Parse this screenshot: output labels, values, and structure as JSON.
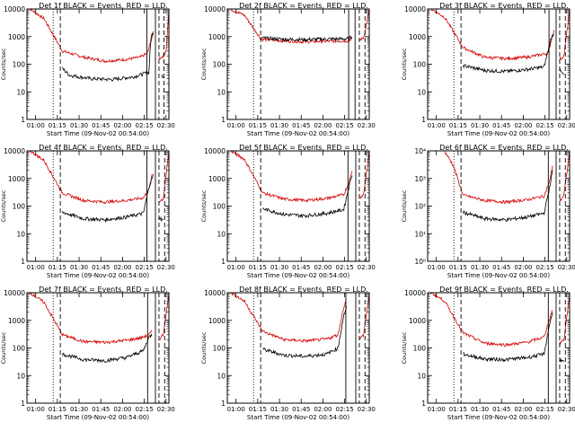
{
  "chart_data": {
    "type": "line",
    "common": {
      "xlabel": "Start Time (09-Nov-02 00:54:00)",
      "ylabel": "Counts/sec",
      "xlim": [
        "00:54",
        "02:32"
      ],
      "x_ticks": [
        "01:00",
        "01:15",
        "01:30",
        "01:45",
        "02:00",
        "02:15",
        "02:30"
      ],
      "y_scale": "log",
      "ylim": [
        1,
        10000
      ],
      "series": [
        {
          "label": "BLACK = Events",
          "color": "#000000"
        },
        {
          "label": "RED = LLD",
          "color": "#d40000"
        }
      ],
      "grid": false
    },
    "panels": [
      {
        "title": "Det 1f BLACK = Events, RED = LLD.",
        "y_tick_labels": [
          "1",
          "10",
          "100",
          "1000",
          "10000"
        ],
        "red": [
          [
            0.0,
            12000
          ],
          [
            0.12,
            4500
          ],
          [
            0.25,
            300
          ],
          [
            0.4,
            180
          ],
          [
            0.55,
            130
          ],
          [
            0.7,
            150
          ],
          [
            0.8,
            180
          ],
          [
            0.85,
            260
          ],
          [
            0.88,
            900
          ],
          [
            0.89,
            1500
          ]
        ],
        "black": [
          [
            0.25,
            70
          ],
          [
            0.3,
            40
          ],
          [
            0.45,
            30
          ],
          [
            0.6,
            28
          ],
          [
            0.75,
            35
          ],
          [
            0.82,
            45
          ],
          [
            0.86,
            50
          ],
          [
            0.87,
            650
          ],
          [
            0.88,
            1200
          ],
          [
            0.89,
            1300
          ]
        ],
        "red_post": [
          [
            0.93,
            160
          ],
          [
            0.96,
            200
          ],
          [
            0.98,
            300
          ],
          [
            1.0,
            9000
          ]
        ],
        "black_post": [
          [
            0.95,
            40
          ],
          [
            0.965,
            35
          ]
        ],
        "solid": [
          0.845,
          0.905
        ],
        "dashed": [
          0.235,
          0.93,
          0.965
        ],
        "dotted": [
          0.185
        ]
      },
      {
        "title": "Det 2f BLACK = Events, RED = LLD.",
        "y_tick_labels": [
          "1",
          "10",
          "100",
          "1000",
          "10000"
        ],
        "red": [
          [
            0.0,
            11000
          ],
          [
            0.12,
            6000
          ],
          [
            0.24,
            800
          ],
          [
            0.4,
            700
          ],
          [
            0.55,
            650
          ],
          [
            0.7,
            680
          ],
          [
            0.85,
            700
          ],
          [
            0.88,
            900
          ]
        ],
        "black": [
          [
            0.24,
            900
          ],
          [
            0.4,
            800
          ],
          [
            0.55,
            780
          ],
          [
            0.7,
            820
          ],
          [
            0.85,
            830
          ],
          [
            0.88,
            1000
          ]
        ],
        "red_post": [
          [
            0.93,
            750
          ],
          [
            0.96,
            900
          ],
          [
            1.0,
            9000
          ]
        ],
        "black_post": [],
        "solid": [
          0.855,
          0.9
        ],
        "dashed": [
          0.235,
          0.93,
          0.97
        ],
        "dotted": [
          0.185
        ]
      },
      {
        "title": "Det 3f BLACK = Events, RED = LLD.",
        "y_tick_labels": [
          "1",
          "10",
          "100",
          "1000",
          "10000"
        ],
        "red": [
          [
            0.0,
            12000
          ],
          [
            0.12,
            5000
          ],
          [
            0.25,
            400
          ],
          [
            0.4,
            180
          ],
          [
            0.55,
            160
          ],
          [
            0.7,
            180
          ],
          [
            0.85,
            250
          ],
          [
            0.88,
            1200
          ],
          [
            0.89,
            1600
          ]
        ],
        "black": [
          [
            0.25,
            90
          ],
          [
            0.4,
            60
          ],
          [
            0.55,
            55
          ],
          [
            0.7,
            65
          ],
          [
            0.82,
            80
          ],
          [
            0.87,
            900
          ],
          [
            0.89,
            1400
          ]
        ],
        "red_post": [
          [
            0.93,
            150
          ],
          [
            0.96,
            200
          ],
          [
            1.0,
            9000
          ]
        ],
        "black_post": [
          [
            0.93,
            60
          ],
          [
            0.96,
            40
          ]
        ],
        "solid": [
          0.855,
          0.905
        ],
        "dashed": [
          0.235,
          0.93,
          0.97
        ],
        "dotted": [
          0.185
        ]
      },
      {
        "title": "Det 4f BLACK = Events, RED = LLD.",
        "y_tick_labels": [
          "1",
          "10",
          "100",
          "1000",
          "10000"
        ],
        "red": [
          [
            0.0,
            12000
          ],
          [
            0.12,
            4500
          ],
          [
            0.25,
            300
          ],
          [
            0.4,
            160
          ],
          [
            0.55,
            140
          ],
          [
            0.7,
            160
          ],
          [
            0.82,
            200
          ],
          [
            0.86,
            400
          ],
          [
            0.88,
            1300
          ],
          [
            0.89,
            1500
          ]
        ],
        "black": [
          [
            0.25,
            60
          ],
          [
            0.4,
            35
          ],
          [
            0.55,
            32
          ],
          [
            0.7,
            40
          ],
          [
            0.82,
            55
          ],
          [
            0.86,
            500
          ],
          [
            0.88,
            1000
          ],
          [
            0.89,
            1200
          ]
        ],
        "red_post": [
          [
            0.93,
            150
          ],
          [
            0.96,
            180
          ],
          [
            1.0,
            9000
          ]
        ],
        "black_post": [
          [
            0.93,
            40
          ],
          [
            0.96,
            30
          ]
        ],
        "solid": [
          0.845,
          0.905
        ],
        "dashed": [
          0.235,
          0.93,
          0.97
        ],
        "dotted": [
          0.185
        ]
      },
      {
        "title": "Det 5f BLACK = Events, RED = LLD.",
        "y_tick_labels": [
          "1",
          "10",
          "100",
          "1000",
          "10000"
        ],
        "red": [
          [
            0.0,
            12000
          ],
          [
            0.12,
            5000
          ],
          [
            0.25,
            300
          ],
          [
            0.4,
            180
          ],
          [
            0.55,
            160
          ],
          [
            0.7,
            190
          ],
          [
            0.82,
            260
          ],
          [
            0.86,
            800
          ],
          [
            0.88,
            2000
          ]
        ],
        "black": [
          [
            0.25,
            80
          ],
          [
            0.4,
            50
          ],
          [
            0.55,
            45
          ],
          [
            0.7,
            55
          ],
          [
            0.82,
            75
          ],
          [
            0.86,
            600
          ],
          [
            0.88,
            1500
          ]
        ],
        "red_post": [
          [
            0.93,
            200
          ],
          [
            0.96,
            260
          ],
          [
            1.0,
            9000
          ]
        ],
        "black_post": [],
        "solid": [
          0.85,
          0.905
        ],
        "dashed": [
          0.235,
          0.93,
          0.97
        ],
        "dotted": [
          0.185
        ]
      },
      {
        "title": "Det 6f BLACK = Events, RED = LLD.",
        "y_tick_labels": [
          "10⁰",
          "10¹",
          "10²",
          "10³",
          "10⁴"
        ],
        "red": [
          [
            0.0,
            13000
          ],
          [
            0.1,
            14000
          ],
          [
            0.18,
            3000
          ],
          [
            0.25,
            250
          ],
          [
            0.4,
            160
          ],
          [
            0.55,
            140
          ],
          [
            0.7,
            170
          ],
          [
            0.82,
            230
          ],
          [
            0.86,
            800
          ],
          [
            0.88,
            3000
          ]
        ],
        "black": [
          [
            0.25,
            60
          ],
          [
            0.4,
            35
          ],
          [
            0.55,
            32
          ],
          [
            0.7,
            40
          ],
          [
            0.82,
            55
          ],
          [
            0.86,
            500
          ],
          [
            0.88,
            2000
          ]
        ],
        "red_post": [
          [
            0.93,
            150
          ],
          [
            0.96,
            250
          ],
          [
            1.0,
            9000
          ]
        ],
        "black_post": [],
        "solid": [
          0.85,
          0.905
        ],
        "dashed": [
          0.235,
          0.93,
          0.97
        ],
        "dotted": [
          0.185
        ]
      },
      {
        "title": "Det 7f BLACK = Events, RED = LLD.",
        "y_tick_labels": [
          "1",
          "10",
          "100",
          "1000",
          "10000"
        ],
        "red": [
          [
            0.0,
            12000
          ],
          [
            0.12,
            4500
          ],
          [
            0.25,
            300
          ],
          [
            0.4,
            170
          ],
          [
            0.55,
            160
          ],
          [
            0.7,
            190
          ],
          [
            0.8,
            230
          ],
          [
            0.86,
            300
          ],
          [
            0.88,
            400
          ]
        ],
        "black": [
          [
            0.25,
            60
          ],
          [
            0.4,
            38
          ],
          [
            0.55,
            35
          ],
          [
            0.7,
            45
          ],
          [
            0.82,
            80
          ],
          [
            0.86,
            250
          ],
          [
            0.88,
            300
          ]
        ],
        "red_post": [
          [
            0.93,
            200
          ],
          [
            0.96,
            300
          ],
          [
            1.0,
            9000
          ]
        ],
        "black_post": [],
        "solid": [
          0.85,
          0.905
        ],
        "dashed": [
          0.235,
          0.93,
          0.97
        ],
        "dotted": [
          0.185
        ]
      },
      {
        "title": "Det 8f BLACK = Events, RED = LLD.",
        "y_tick_labels": [
          "1",
          "10",
          "100",
          "1000",
          "10000"
        ],
        "red": [
          [
            0.0,
            12000
          ],
          [
            0.12,
            5000
          ],
          [
            0.25,
            400
          ],
          [
            0.4,
            200
          ],
          [
            0.55,
            180
          ],
          [
            0.7,
            210
          ],
          [
            0.78,
            300
          ],
          [
            0.82,
            3000
          ],
          [
            0.84,
            6000
          ]
        ],
        "black": [
          [
            0.25,
            90
          ],
          [
            0.4,
            55
          ],
          [
            0.55,
            50
          ],
          [
            0.7,
            60
          ],
          [
            0.78,
            100
          ],
          [
            0.82,
            1500
          ],
          [
            0.84,
            3000
          ]
        ],
        "red_post": [
          [
            0.93,
            200
          ],
          [
            0.96,
            300
          ],
          [
            1.0,
            9000
          ]
        ],
        "black_post": [],
        "solid": [
          0.835,
          0.905
        ],
        "dashed": [
          0.235,
          0.93,
          0.97
        ],
        "dotted": [
          0.185
        ]
      },
      {
        "title": "Det 9f BLACK = Events, RED = LLD.",
        "y_tick_labels": [
          "1",
          "10",
          "100",
          "1000",
          "10000"
        ],
        "red": [
          [
            0.0,
            12000
          ],
          [
            0.12,
            5000
          ],
          [
            0.25,
            350
          ],
          [
            0.4,
            150
          ],
          [
            0.55,
            130
          ],
          [
            0.7,
            160
          ],
          [
            0.82,
            250
          ],
          [
            0.86,
            1200
          ],
          [
            0.88,
            2500
          ]
        ],
        "black": [
          [
            0.25,
            60
          ],
          [
            0.4,
            40
          ],
          [
            0.55,
            38
          ],
          [
            0.7,
            45
          ],
          [
            0.82,
            60
          ],
          [
            0.86,
            800
          ],
          [
            0.88,
            1800
          ]
        ],
        "red_post": [
          [
            0.93,
            150
          ],
          [
            0.96,
            200
          ],
          [
            1.0,
            9000
          ]
        ],
        "black_post": [
          [
            0.93,
            40
          ],
          [
            0.96,
            30
          ]
        ],
        "solid": [
          0.85,
          0.905
        ],
        "dashed": [
          0.235,
          0.93,
          0.97
        ],
        "dotted": [
          0.185
        ]
      }
    ]
  }
}
